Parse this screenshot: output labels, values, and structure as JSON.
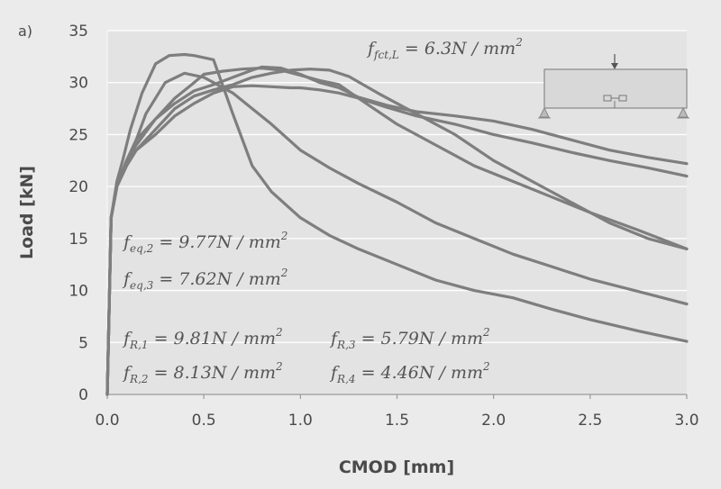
{
  "chart_data": {
    "type": "line",
    "panel_label": "a)",
    "xlabel": "CMOD [mm]",
    "ylabel": "Load [kN]",
    "xlim": [
      0,
      3.0
    ],
    "ylim": [
      0,
      35
    ],
    "x_ticks": [
      "0.0",
      "0.5",
      "1.0",
      "1.5",
      "2.0",
      "2.5",
      "3.0"
    ],
    "y_ticks": [
      "0",
      "5",
      "10",
      "15",
      "20",
      "25",
      "30",
      "35"
    ],
    "grid": "horizontal",
    "line_color": "#7e7e7e",
    "annotations": {
      "fct": {
        "f": "f",
        "sub": "fct,L",
        "rest": " = 6.3N / mm",
        "sup": "2"
      },
      "feq2": {
        "f": "f",
        "sub": "eq,2",
        "rest": " = 9.77N / mm",
        "sup": "2"
      },
      "feq3": {
        "f": "f",
        "sub": "eq,3",
        "rest": " = 7.62N / mm",
        "sup": "2"
      },
      "fr1": {
        "f": "f",
        "sub": "R,1",
        "rest": " = 9.81N / mm",
        "sup": "2"
      },
      "fr2": {
        "f": "f",
        "sub": "R,2",
        "rest": " = 8.13N / mm",
        "sup": "2"
      },
      "fr3": {
        "f": "f",
        "sub": "R,3",
        "rest": " = 5.79N / mm",
        "sup": "2"
      },
      "fr4": {
        "f": "f",
        "sub": "R,4",
        "rest": " = 4.46N / mm",
        "sup": "2"
      }
    },
    "series": [
      {
        "x": [
          0,
          0.02,
          0.05,
          0.08,
          0.12,
          0.18,
          0.25,
          0.32,
          0.4,
          0.45,
          0.55,
          0.65,
          0.75,
          0.85,
          1.0,
          1.15,
          1.3,
          1.5,
          1.7,
          1.9,
          2.1,
          2.3,
          2.5,
          2.75,
          3.0
        ],
        "y": [
          0,
          17,
          20.5,
          22.5,
          25.5,
          29,
          31.8,
          32.6,
          32.7,
          32.6,
          32.2,
          27,
          22,
          19.5,
          17,
          15.3,
          14,
          12.5,
          11,
          10,
          9.3,
          8.2,
          7.2,
          6.1,
          5.1
        ]
      },
      {
        "x": [
          0,
          0.02,
          0.05,
          0.1,
          0.15,
          0.2,
          0.3,
          0.4,
          0.5,
          0.55,
          0.65,
          0.75,
          0.85,
          1.0,
          1.15,
          1.3,
          1.5,
          1.7,
          1.9,
          2.1,
          2.3,
          2.5,
          2.75,
          3.0
        ],
        "y": [
          0,
          17,
          20,
          22,
          24.5,
          27,
          30,
          30.9,
          30.5,
          30,
          29,
          27.5,
          26,
          23.5,
          21.8,
          20.3,
          18.5,
          16.5,
          15,
          13.5,
          12.3,
          11.1,
          9.9,
          8.7
        ]
      },
      {
        "x": [
          0,
          0.02,
          0.05,
          0.1,
          0.15,
          0.25,
          0.35,
          0.45,
          0.5,
          0.6,
          0.7,
          0.8,
          0.9,
          1.0,
          1.1,
          1.2,
          1.3,
          1.5,
          1.7,
          1.9,
          2.1,
          2.3,
          2.5,
          2.75,
          3.0
        ],
        "y": [
          0,
          17,
          20,
          22.5,
          24,
          26.5,
          28.5,
          30,
          30.8,
          31.1,
          31.3,
          31.4,
          31.2,
          30.7,
          30.2,
          29.8,
          28.5,
          26,
          24,
          22,
          20.5,
          19,
          17.5,
          15.8,
          14
        ]
      },
      {
        "x": [
          0,
          0.02,
          0.05,
          0.1,
          0.15,
          0.25,
          0.35,
          0.45,
          0.55,
          0.65,
          0.75,
          0.85,
          0.95,
          1.05,
          1.15,
          1.25,
          1.4,
          1.6,
          1.8,
          2.0,
          2.2,
          2.4,
          2.6,
          2.8,
          3.0
        ],
        "y": [
          0,
          17,
          20,
          22,
          23.5,
          25.5,
          27.5,
          28.7,
          29.3,
          29.8,
          30.5,
          30.9,
          31.2,
          31.3,
          31.2,
          30.6,
          29,
          27,
          25,
          22.5,
          20.5,
          18.5,
          16.5,
          15,
          14
        ]
      },
      {
        "x": [
          0,
          0.02,
          0.05,
          0.1,
          0.15,
          0.25,
          0.35,
          0.45,
          0.55,
          0.65,
          0.75,
          0.8,
          0.9,
          1.0,
          1.1,
          1.2,
          1.3,
          1.45,
          1.6,
          1.8,
          2.0,
          2.2,
          2.4,
          2.6,
          2.8,
          3.0
        ],
        "y": [
          0,
          17,
          20,
          22.5,
          24.5,
          26.5,
          28,
          29.2,
          29.8,
          30.5,
          31.2,
          31.5,
          31.4,
          30.8,
          30,
          29.5,
          28.6,
          27.8,
          27.2,
          26.8,
          26.3,
          25.5,
          24.5,
          23.5,
          22.8,
          22.2
        ]
      },
      {
        "x": [
          0,
          0.02,
          0.05,
          0.1,
          0.15,
          0.25,
          0.35,
          0.45,
          0.55,
          0.65,
          0.75,
          0.85,
          0.95,
          1.0,
          1.1,
          1.2,
          1.3,
          1.45,
          1.6,
          1.8,
          2.0,
          2.2,
          2.4,
          2.6,
          2.8,
          3.0
        ],
        "y": [
          0,
          17,
          20,
          22,
          23.5,
          25,
          26.8,
          28,
          29,
          29.6,
          29.7,
          29.6,
          29.5,
          29.5,
          29.3,
          29,
          28.5,
          27.6,
          26.8,
          26,
          25,
          24.2,
          23.3,
          22.5,
          21.8,
          21
        ]
      }
    ]
  }
}
